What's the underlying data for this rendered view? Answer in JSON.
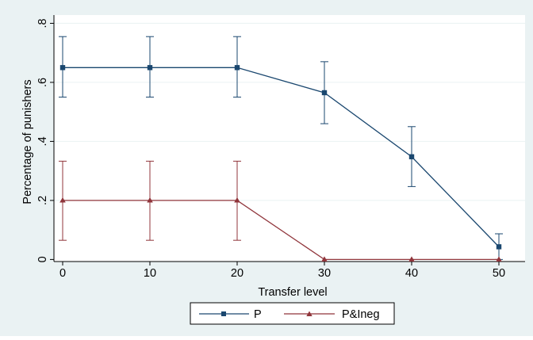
{
  "chart_data": {
    "type": "line",
    "xlabel": "Transfer level",
    "ylabel": "Percentage of punishers",
    "x": [
      0,
      10,
      20,
      30,
      40,
      50
    ],
    "x_ticks": [
      "0",
      "10",
      "20",
      "30",
      "40",
      "50"
    ],
    "y_ticks": [
      "0",
      ".2",
      ".4",
      ".6",
      ".8"
    ],
    "y_tick_values": [
      0,
      0.2,
      0.4,
      0.6,
      0.8
    ],
    "xlim": [
      -1,
      53
    ],
    "ylim": [
      -0.007,
      0.828
    ],
    "grid": "horizontal",
    "legend": "bottom",
    "series": [
      {
        "name": "P",
        "color": "#1a476f",
        "marker": "square",
        "values": [
          0.65,
          0.65,
          0.65,
          0.565,
          0.348,
          0.043
        ],
        "ci_low": [
          0.55,
          0.55,
          0.55,
          0.46,
          0.247,
          0.0
        ],
        "ci_high": [
          0.755,
          0.755,
          0.755,
          0.67,
          0.45,
          0.087
        ]
      },
      {
        "name": "P&Ineg",
        "color": "#90353b",
        "marker": "triangle",
        "values": [
          0.2,
          0.2,
          0.2,
          0.0,
          0.0,
          0.0
        ],
        "ci_low": [
          0.065,
          0.065,
          0.065,
          0.0,
          0.0,
          0.0
        ],
        "ci_high": [
          0.333,
          0.333,
          0.333,
          0.0,
          0.0,
          0.0
        ]
      }
    ]
  },
  "colors": {
    "outer_background": "#eaf2f3",
    "plot_background": "#ffffff",
    "grid": "#eaf2f3"
  }
}
